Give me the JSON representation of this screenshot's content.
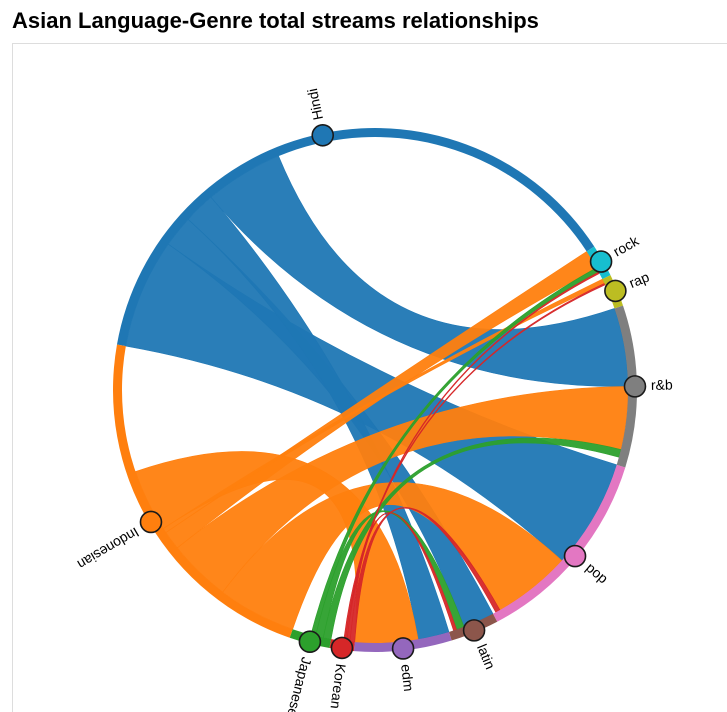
{
  "chart_data": {
    "type": "chord",
    "title": "Asian Language-Genre total streams relationships",
    "nodes": [
      {
        "name": "Hindi",
        "group": "language",
        "color": "#1f77b4",
        "value": 38
      },
      {
        "name": "rock",
        "group": "genre",
        "color": "#17becf",
        "value": 2
      },
      {
        "name": "rap",
        "group": "genre",
        "color": "#bcbd22",
        "value": 2
      },
      {
        "name": "r&b",
        "group": "genre",
        "color": "#7f7f7f",
        "value": 10
      },
      {
        "name": "pop",
        "group": "genre",
        "color": "#e377c2",
        "value": 12.5
      },
      {
        "name": "latin",
        "group": "genre",
        "color": "#8c564b",
        "value": 3
      },
      {
        "name": "edm",
        "group": "genre",
        "color": "#9467bd",
        "value": 6
      },
      {
        "name": "Korean",
        "group": "language",
        "color": "#d62728",
        "value": 1.5
      },
      {
        "name": "Japanese",
        "group": "language",
        "color": "#2ca02c",
        "value": 2.5
      },
      {
        "name": "Indonesian",
        "group": "language",
        "color": "#ff7f0e",
        "value": 22.5
      }
    ],
    "links": [
      {
        "source": "Hindi",
        "target": "pop",
        "value": 7
      },
      {
        "source": "Hindi",
        "target": "latin",
        "value": 2
      },
      {
        "source": "Hindi",
        "target": "edm",
        "value": 2
      },
      {
        "source": "Hindi",
        "target": "r&b",
        "value": 5
      },
      {
        "source": "Indonesian",
        "target": "pop",
        "value": 5
      },
      {
        "source": "Indonesian",
        "target": "r&b",
        "value": 4
      },
      {
        "source": "Indonesian",
        "target": "rock",
        "value": 1.2
      },
      {
        "source": "Indonesian",
        "target": "rap",
        "value": 0.3
      },
      {
        "source": "Indonesian",
        "target": "edm",
        "value": 4
      },
      {
        "source": "Japanese",
        "target": "r&b",
        "value": 0.5
      },
      {
        "source": "Japanese",
        "target": "latin",
        "value": 0.5
      },
      {
        "source": "Japanese",
        "target": "rock",
        "value": 0.3
      },
      {
        "source": "Korean",
        "target": "pop",
        "value": 0.3
      },
      {
        "source": "Korean",
        "target": "latin",
        "value": 0.2
      },
      {
        "source": "Korean",
        "target": "rock",
        "value": 0.1
      },
      {
        "source": "Korean",
        "target": "rap",
        "value": 0.1
      }
    ]
  }
}
